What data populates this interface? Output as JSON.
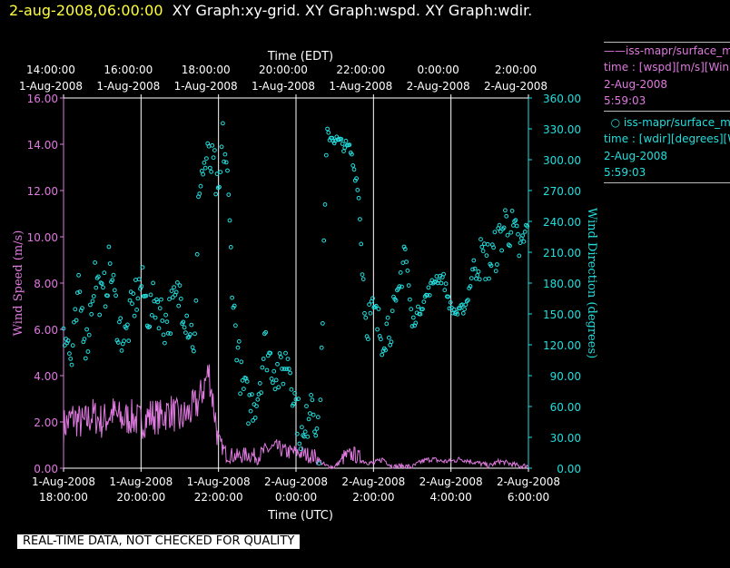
{
  "header": {
    "datetime": "2-aug-2008,06:00:00",
    "graphs": "XY Graph:xy-grid.  XY Graph:wspd.  XY Graph:wdir."
  },
  "legend": [
    {
      "line1": "iss-mapr/surface_m",
      "line2": "time : [wspd][m/s][Win",
      "line3": "2-Aug-2008",
      "line4": "5:59:03",
      "color": "#e07ae0",
      "marker": "line"
    },
    {
      "line1": "iss-mapr/surface_m",
      "line2": "time : [wdir][degrees][W",
      "line3": "2-Aug-2008",
      "line4": "5:59:03",
      "color": "#22dede",
      "marker": "circle"
    }
  ],
  "disclaimer": "REAL-TIME DATA, NOT CHECKED FOR QUALITY",
  "chart_data": {
    "type": "scatter",
    "top_axis": {
      "label": "Time (EDT)",
      "ticks": [
        {
          "time": "14:00:00",
          "date": "1-Aug-2008"
        },
        {
          "time": "16:00:00",
          "date": "1-Aug-2008"
        },
        {
          "time": "18:00:00",
          "date": "1-Aug-2008"
        },
        {
          "time": "20:00:00",
          "date": "1-Aug-2008"
        },
        {
          "time": "22:00:00",
          "date": "1-Aug-2008"
        },
        {
          "time": "0:00:00",
          "date": "2-Aug-2008"
        },
        {
          "time": "2:00:00",
          "date": "2-Aug-2008"
        }
      ]
    },
    "bottom_axis": {
      "label": "Time (UTC)",
      "ticks": [
        {
          "date": "1-Aug-2008",
          "time": "18:00:00"
        },
        {
          "date": "1-Aug-2008",
          "time": "20:00:00"
        },
        {
          "date": "1-Aug-2008",
          "time": "22:00:00"
        },
        {
          "date": "2-Aug-2008",
          "time": "0:00:00"
        },
        {
          "date": "2-Aug-2008",
          "time": "2:00:00"
        },
        {
          "date": "2-Aug-2008",
          "time": "4:00:00"
        },
        {
          "date": "2-Aug-2008",
          "time": "6:00:00"
        }
      ],
      "range_utc": [
        "2008-08-01 18:00",
        "2008-08-02 06:00"
      ]
    },
    "left_axis": {
      "label": "Wind Speed (m/s)",
      "range": [
        0,
        16
      ],
      "ticks": [
        "0.00",
        "2.00",
        "4.00",
        "6.00",
        "8.00",
        "10.00",
        "12.00",
        "14.00",
        "16.00"
      ]
    },
    "right_axis": {
      "label": "Wind Direction (degrees)",
      "range": [
        0,
        360
      ],
      "ticks": [
        "0.00",
        "30.00",
        "60.00",
        "90.00",
        "120.00",
        "150.00",
        "180.00",
        "210.00",
        "240.00",
        "270.00",
        "300.00",
        "330.00",
        "360.00"
      ]
    },
    "grid": "vertical lines at tick times",
    "series": [
      {
        "type": "line",
        "axis": "left",
        "color": "#e07ae0",
        "values_utc_hours_to_mps": [
          [
            18.0,
            1.8
          ],
          [
            18.25,
            2.2
          ],
          [
            18.5,
            1.9
          ],
          [
            18.75,
            2.3
          ],
          [
            19.0,
            2.0
          ],
          [
            19.25,
            2.4
          ],
          [
            19.5,
            2.1
          ],
          [
            19.75,
            2.2
          ],
          [
            20.0,
            2.0
          ],
          [
            20.25,
            2.3
          ],
          [
            20.5,
            2.2
          ],
          [
            20.75,
            2.5
          ],
          [
            21.0,
            2.1
          ],
          [
            21.25,
            2.4
          ],
          [
            21.5,
            2.9
          ],
          [
            21.75,
            4.2
          ],
          [
            21.85,
            3.0
          ],
          [
            22.0,
            1.2
          ],
          [
            22.2,
            0.6
          ],
          [
            22.5,
            0.5
          ],
          [
            22.75,
            0.6
          ],
          [
            23.0,
            0.5
          ],
          [
            23.25,
            0.8
          ],
          [
            23.5,
            0.9
          ],
          [
            23.75,
            0.7
          ],
          [
            24.0,
            0.7
          ],
          [
            24.25,
            0.6
          ],
          [
            24.5,
            0.5
          ],
          [
            24.75,
            0.1
          ],
          [
            25.0,
            0.05
          ],
          [
            25.25,
            0.5
          ],
          [
            25.5,
            0.6
          ],
          [
            25.75,
            0.3
          ],
          [
            26.0,
            0.2
          ],
          [
            26.25,
            0.4
          ],
          [
            26.5,
            0.05
          ],
          [
            26.75,
            0.1
          ],
          [
            27.0,
            0.05
          ],
          [
            27.25,
            0.3
          ],
          [
            27.5,
            0.4
          ],
          [
            27.75,
            0.3
          ],
          [
            28.0,
            0.3
          ],
          [
            28.25,
            0.4
          ],
          [
            28.5,
            0.3
          ],
          [
            28.75,
            0.2
          ],
          [
            29.0,
            0.1
          ],
          [
            29.25,
            0.3
          ],
          [
            29.5,
            0.2
          ],
          [
            29.75,
            0.1
          ],
          [
            30.0,
            0.1
          ]
        ]
      },
      {
        "type": "scatter",
        "axis": "right",
        "color": "#22dede",
        "values_utc_hours_to_deg": [
          [
            18.0,
            145
          ],
          [
            18.2,
            100
          ],
          [
            18.4,
            170
          ],
          [
            18.6,
            120
          ],
          [
            18.8,
            190
          ],
          [
            19.0,
            160
          ],
          [
            19.2,
            200
          ],
          [
            19.4,
            140
          ],
          [
            19.6,
            125
          ],
          [
            19.8,
            160
          ],
          [
            20.0,
            180
          ],
          [
            20.2,
            150
          ],
          [
            20.4,
            165
          ],
          [
            20.6,
            140
          ],
          [
            20.8,
            155
          ],
          [
            21.0,
            170
          ],
          [
            21.2,
            145
          ],
          [
            21.4,
            120
          ],
          [
            21.5,
            280
          ],
          [
            21.7,
            300
          ],
          [
            21.9,
            290
          ],
          [
            22.0,
            250
          ],
          [
            22.1,
            320
          ],
          [
            22.2,
            300
          ],
          [
            22.4,
            150
          ],
          [
            22.6,
            80
          ],
          [
            22.8,
            60
          ],
          [
            23.0,
            70
          ],
          [
            23.2,
            120
          ],
          [
            23.4,
            100
          ],
          [
            23.6,
            90
          ],
          [
            23.8,
            110
          ],
          [
            24.0,
            60
          ],
          [
            24.2,
            20
          ],
          [
            24.4,
            80
          ],
          [
            24.6,
            20
          ],
          [
            24.8,
            325
          ],
          [
            25.0,
            320
          ],
          [
            25.2,
            315
          ],
          [
            25.4,
            310
          ],
          [
            25.5,
            290
          ],
          [
            25.6,
            275
          ],
          [
            25.8,
            145
          ],
          [
            26.0,
            150
          ],
          [
            26.2,
            130
          ],
          [
            26.4,
            140
          ],
          [
            26.6,
            150
          ],
          [
            26.8,
            220
          ],
          [
            27.0,
            140
          ],
          [
            27.2,
            155
          ],
          [
            27.4,
            170
          ],
          [
            27.6,
            185
          ],
          [
            27.8,
            185
          ],
          [
            28.0,
            155
          ],
          [
            28.2,
            150
          ],
          [
            28.4,
            160
          ],
          [
            28.6,
            200
          ],
          [
            28.8,
            205
          ],
          [
            29.0,
            200
          ],
          [
            29.2,
            215
          ],
          [
            29.4,
            240
          ],
          [
            29.6,
            230
          ],
          [
            29.8,
            210
          ],
          [
            30.0,
            235
          ]
        ]
      }
    ]
  }
}
